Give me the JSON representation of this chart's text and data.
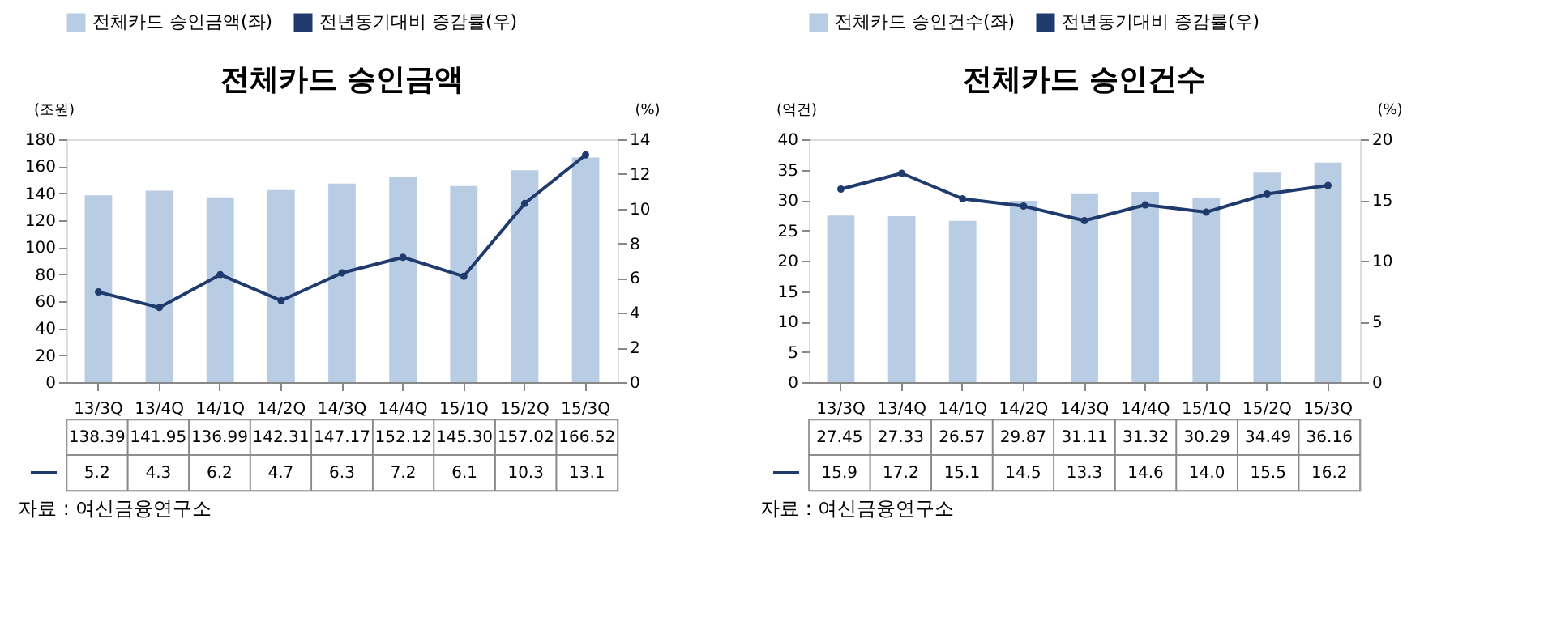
{
  "chart_data": [
    {
      "type": "bar",
      "title": "전체카드  승인금액",
      "ylabel": "(조원)",
      "y2label": "(%)",
      "categories": [
        "13/3Q",
        "13/4Q",
        "14/1Q",
        "14/2Q",
        "14/3Q",
        "14/4Q",
        "15/1Q",
        "15/2Q",
        "15/3Q"
      ],
      "series": [
        {
          "name": "전체카드 승인금액(좌)",
          "color": "#b8cce4",
          "values": [
            138.39,
            141.95,
            136.99,
            142.31,
            147.17,
            152.12,
            145.3,
            157.02,
            166.52
          ],
          "value_labels": [
            "138.39",
            "141.95",
            "136.99",
            "142.31",
            "147.17",
            "152.12",
            "145.30",
            "157.02",
            "166.52"
          ]
        },
        {
          "name": "전년동기대비 증감률(우)",
          "type": "line",
          "axis": "y2",
          "color": "#1f3b6e",
          "marker": "circle",
          "values": [
            5.2,
            4.3,
            6.2,
            4.7,
            6.3,
            7.2,
            6.1,
            10.3,
            13.1
          ],
          "value_labels": [
            "5.2",
            "4.3",
            "6.2",
            "4.7",
            "6.3",
            "7.2",
            "6.1",
            "10.3",
            "13.1"
          ]
        }
      ],
      "ylim": [
        0,
        180
      ],
      "yticks": [
        0,
        20,
        40,
        60,
        80,
        100,
        120,
        140,
        160,
        180
      ],
      "y2lim": [
        0,
        14
      ],
      "y2ticks": [
        0,
        2,
        4,
        6,
        8,
        10,
        12,
        14
      ],
      "legend": "top",
      "grid": false,
      "data_labels": true,
      "annotations": [
        "자료 : 여신금융연구소"
      ]
    },
    {
      "type": "bar",
      "title": "전체카드  승인건수",
      "ylabel": "(억건)",
      "y2label": "(%)",
      "categories": [
        "13/3Q",
        "13/4Q",
        "14/1Q",
        "14/2Q",
        "14/3Q",
        "14/4Q",
        "15/1Q",
        "15/2Q",
        "15/3Q"
      ],
      "series": [
        {
          "name": "전체카드 승인건수(좌)",
          "color": "#b8cce4",
          "values": [
            27.45,
            27.33,
            26.57,
            29.87,
            31.11,
            31.32,
            30.29,
            34.49,
            36.16
          ],
          "value_labels": [
            "27.45",
            "27.33",
            "26.57",
            "29.87",
            "31.11",
            "31.32",
            "30.29",
            "34.49",
            "36.16"
          ]
        },
        {
          "name": "전년동기대비 증감률(우)",
          "type": "line",
          "axis": "y2",
          "color": "#1f3b6e",
          "marker": "circle",
          "values": [
            15.9,
            17.2,
            15.1,
            14.5,
            13.3,
            14.6,
            14.0,
            15.5,
            16.2
          ],
          "value_labels": [
            "15.9",
            "17.2",
            "15.1",
            "14.5",
            "13.3",
            "14.6",
            "14.0",
            "15.5",
            "16.2"
          ]
        }
      ],
      "ylim": [
        0,
        40
      ],
      "yticks": [
        0,
        5,
        10,
        15,
        20,
        25,
        30,
        35,
        40
      ],
      "y2lim": [
        0,
        20
      ],
      "y2ticks": [
        0,
        5,
        10,
        15,
        20
      ],
      "legend": "top",
      "grid": false,
      "data_labels": true,
      "annotations": [
        "자료 : 여신금융연구소"
      ]
    }
  ]
}
